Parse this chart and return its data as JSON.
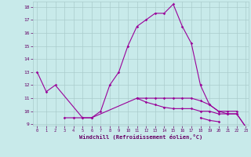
{
  "xlabel": "Windchill (Refroidissement éolien,°C)",
  "x_values": [
    0,
    1,
    2,
    3,
    4,
    5,
    6,
    7,
    8,
    9,
    10,
    11,
    12,
    13,
    14,
    15,
    16,
    17,
    18,
    19,
    20,
    21,
    22,
    23
  ],
  "line_main": [
    13.0,
    11.5,
    12.0,
    null,
    null,
    9.5,
    9.5,
    10.0,
    12.0,
    13.0,
    15.0,
    16.5,
    17.0,
    17.5,
    17.5,
    18.2,
    16.5,
    15.2,
    12.0,
    10.5,
    10.0,
    9.8,
    9.8,
    8.8
  ],
  "line2": [
    null,
    null,
    null,
    9.5,
    9.5,
    9.5,
    9.5,
    null,
    null,
    null,
    null,
    11.0,
    11.0,
    11.0,
    11.0,
    11.0,
    11.0,
    11.0,
    10.8,
    10.5,
    10.0,
    10.0,
    10.0,
    null
  ],
  "line3": [
    null,
    null,
    null,
    null,
    null,
    null,
    null,
    null,
    null,
    null,
    null,
    11.0,
    10.7,
    10.5,
    10.3,
    10.2,
    10.2,
    10.2,
    10.0,
    10.0,
    9.8,
    9.8,
    9.8,
    8.8
  ],
  "line4": [
    null,
    null,
    null,
    null,
    null,
    null,
    null,
    null,
    null,
    null,
    null,
    null,
    null,
    null,
    null,
    null,
    null,
    null,
    9.5,
    9.3,
    9.2,
    null,
    null,
    null
  ],
  "ylim_min": 9,
  "ylim_max": 18,
  "xlim_min": 0,
  "xlim_max": 23,
  "yticks": [
    9,
    10,
    11,
    12,
    13,
    14,
    15,
    16,
    17,
    18
  ],
  "xticks": [
    0,
    1,
    2,
    3,
    4,
    5,
    6,
    7,
    8,
    9,
    10,
    11,
    12,
    13,
    14,
    15,
    16,
    17,
    18,
    19,
    20,
    21,
    22,
    23
  ],
  "line_color": "#990099",
  "bg_color": "#c8eaea",
  "grid_color": "#aacccc",
  "label_color": "#660066",
  "tick_color": "#660066"
}
